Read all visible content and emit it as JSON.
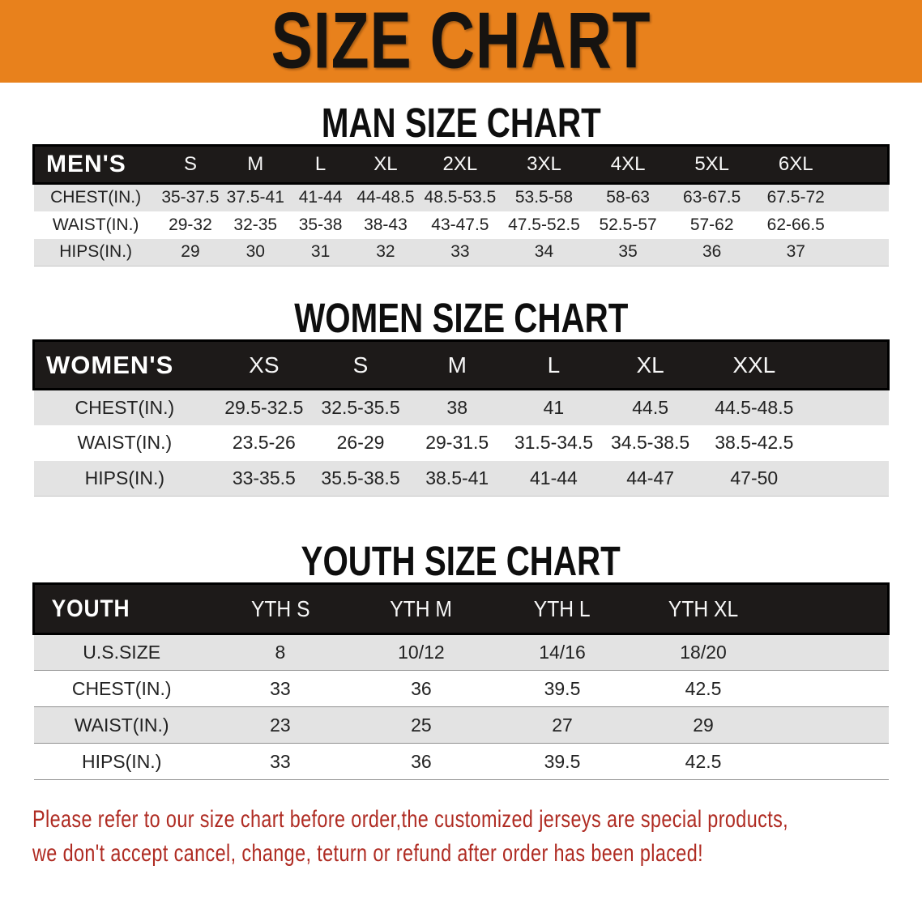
{
  "banner": {
    "title": "SIZE CHART",
    "bg_color": "#E8811C"
  },
  "sections": [
    {
      "heading": "MAN SIZE CHART",
      "table": {
        "header_label": "MEN'S",
        "columns": [
          "S",
          "M",
          "L",
          "XL",
          "2XL",
          "3XL",
          "4XL",
          "5XL",
          "6XL"
        ],
        "rows": [
          {
            "label": "CHEST(IN.)",
            "values": [
              "35-37.5",
              "37.5-41",
              "41-44",
              "44-48.5",
              "48.5-53.5",
              "53.5-58",
              "58-63",
              "63-67.5",
              "67.5-72"
            ]
          },
          {
            "label": "WAIST(IN.)",
            "values": [
              "29-32",
              "32-35",
              "35-38",
              "38-43",
              "43-47.5",
              "47.5-52.5",
              "52.5-57",
              "57-62",
              "62-66.5"
            ]
          },
          {
            "label": "HIPS(IN.)",
            "values": [
              "29",
              "30",
              "31",
              "32",
              "33",
              "34",
              "35",
              "36",
              "37"
            ]
          }
        ]
      }
    },
    {
      "heading": "WOMEN SIZE CHART",
      "table": {
        "header_label": "WOMEN'S",
        "columns": [
          "XS",
          "S",
          "M",
          "L",
          "XL",
          "XXL"
        ],
        "rows": [
          {
            "label": "CHEST(IN.)",
            "values": [
              "29.5-32.5",
              "32.5-35.5",
              "38",
              "41",
              "44.5",
              "44.5-48.5"
            ]
          },
          {
            "label": "WAIST(IN.)",
            "values": [
              "23.5-26",
              "26-29",
              "29-31.5",
              "31.5-34.5",
              "34.5-38.5",
              "38.5-42.5"
            ]
          },
          {
            "label": "HIPS(IN.)",
            "values": [
              "33-35.5",
              "35.5-38.5",
              "38.5-41",
              "41-44",
              "44-47",
              "47-50"
            ]
          }
        ]
      }
    },
    {
      "heading": "YOUTH SIZE CHART",
      "table": {
        "header_label": "YOUTH",
        "columns": [
          "YTH S",
          "YTH M",
          "YTH L",
          "YTH XL"
        ],
        "rows": [
          {
            "label": "U.S.SIZE",
            "values": [
              "8",
              "10/12",
              "14/16",
              "18/20"
            ]
          },
          {
            "label": "CHEST(IN.)",
            "values": [
              "33",
              "36",
              "39.5",
              "42.5"
            ]
          },
          {
            "label": "WAIST(IN.)",
            "values": [
              "23",
              "25",
              "27",
              "29"
            ]
          },
          {
            "label": "HIPS(IN.)",
            "values": [
              "33",
              "36",
              "39.5",
              "42.5"
            ]
          }
        ]
      }
    }
  ],
  "disclaimer": {
    "line1": "Please refer to our size chart before order,the customized jerseys are special products,",
    "line2": "we don't accept cancel, change, teturn or refund after order has been placed!",
    "color": "#AF2B22"
  }
}
